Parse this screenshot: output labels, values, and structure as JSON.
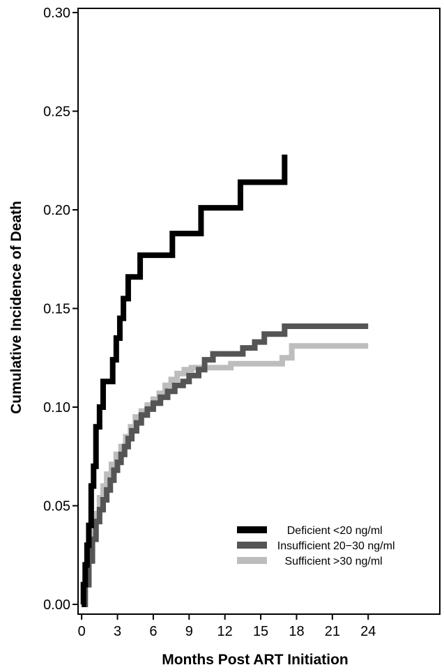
{
  "chart_data": {
    "type": "line",
    "step": true,
    "xlabel": "Months Post ART Initiation",
    "ylabel": "Cumulative Incidence of Death",
    "xlim": [
      -0.3,
      30
    ],
    "ylim": [
      0,
      0.3
    ],
    "x_ticks": [
      0,
      3,
      6,
      9,
      12,
      15,
      18,
      21,
      24
    ],
    "y_ticks": [
      0.0,
      0.05,
      0.1,
      0.15,
      0.2,
      0.25,
      0.3
    ],
    "x_tick_labels": [
      "0",
      "3",
      "6",
      "9",
      "12",
      "15",
      "18",
      "21",
      "24"
    ],
    "y_tick_labels": [
      "0.00",
      "0.05",
      "0.10",
      "0.15",
      "0.20",
      "0.25",
      "0.30"
    ],
    "legend_position": "bottom-right",
    "series": [
      {
        "name_prefix": "Deficient",
        "name_range": "<20 ng/ml",
        "color": "#000000",
        "x": [
          0,
          0.15,
          0.3,
          0.45,
          0.6,
          0.8,
          1.0,
          1.2,
          1.5,
          1.8,
          2.6,
          2.9,
          3.2,
          3.5,
          3.9,
          4.9,
          7.6,
          10.0,
          13.3,
          17.0
        ],
        "y": [
          0,
          0.01,
          0.02,
          0.03,
          0.04,
          0.06,
          0.07,
          0.09,
          0.1,
          0.113,
          0.124,
          0.135,
          0.145,
          0.155,
          0.166,
          0.177,
          0.188,
          0.201,
          0.214,
          0.228
        ]
      },
      {
        "name_prefix": "Insufficient",
        "name_range": "20−30 ng/ml",
        "color": "#555555",
        "x": [
          0,
          0.3,
          0.6,
          0.9,
          1.2,
          1.5,
          1.8,
          2.1,
          2.4,
          2.7,
          3.0,
          3.3,
          3.6,
          3.9,
          4.2,
          4.6,
          5.0,
          5.5,
          6.0,
          6.6,
          7.2,
          7.8,
          8.5,
          9.0,
          9.8,
          10.3,
          11.0,
          13.5,
          14.5,
          15.3,
          17.0,
          24.0
        ],
        "y": [
          0,
          0.01,
          0.022,
          0.033,
          0.042,
          0.048,
          0.053,
          0.058,
          0.063,
          0.068,
          0.072,
          0.076,
          0.08,
          0.084,
          0.088,
          0.092,
          0.096,
          0.099,
          0.102,
          0.105,
          0.108,
          0.111,
          0.113,
          0.116,
          0.119,
          0.124,
          0.127,
          0.13,
          0.133,
          0.137,
          0.141,
          0.141
        ]
      },
      {
        "name_prefix": "Sufficient",
        "name_range": ">30 ng/ml",
        "color": "#bdbdbd",
        "x": [
          0,
          0.3,
          0.6,
          0.9,
          1.2,
          1.5,
          1.8,
          2.1,
          2.5,
          2.9,
          3.3,
          3.7,
          4.1,
          4.5,
          5.0,
          5.5,
          6.0,
          6.5,
          7.0,
          7.5,
          8.0,
          8.6,
          9.2,
          12.5,
          16.8,
          17.6,
          24.0
        ],
        "y": [
          0,
          0.012,
          0.025,
          0.037,
          0.046,
          0.054,
          0.06,
          0.066,
          0.071,
          0.076,
          0.08,
          0.085,
          0.09,
          0.095,
          0.098,
          0.101,
          0.104,
          0.107,
          0.111,
          0.114,
          0.117,
          0.119,
          0.12,
          0.122,
          0.125,
          0.131,
          0.131
        ]
      }
    ]
  }
}
